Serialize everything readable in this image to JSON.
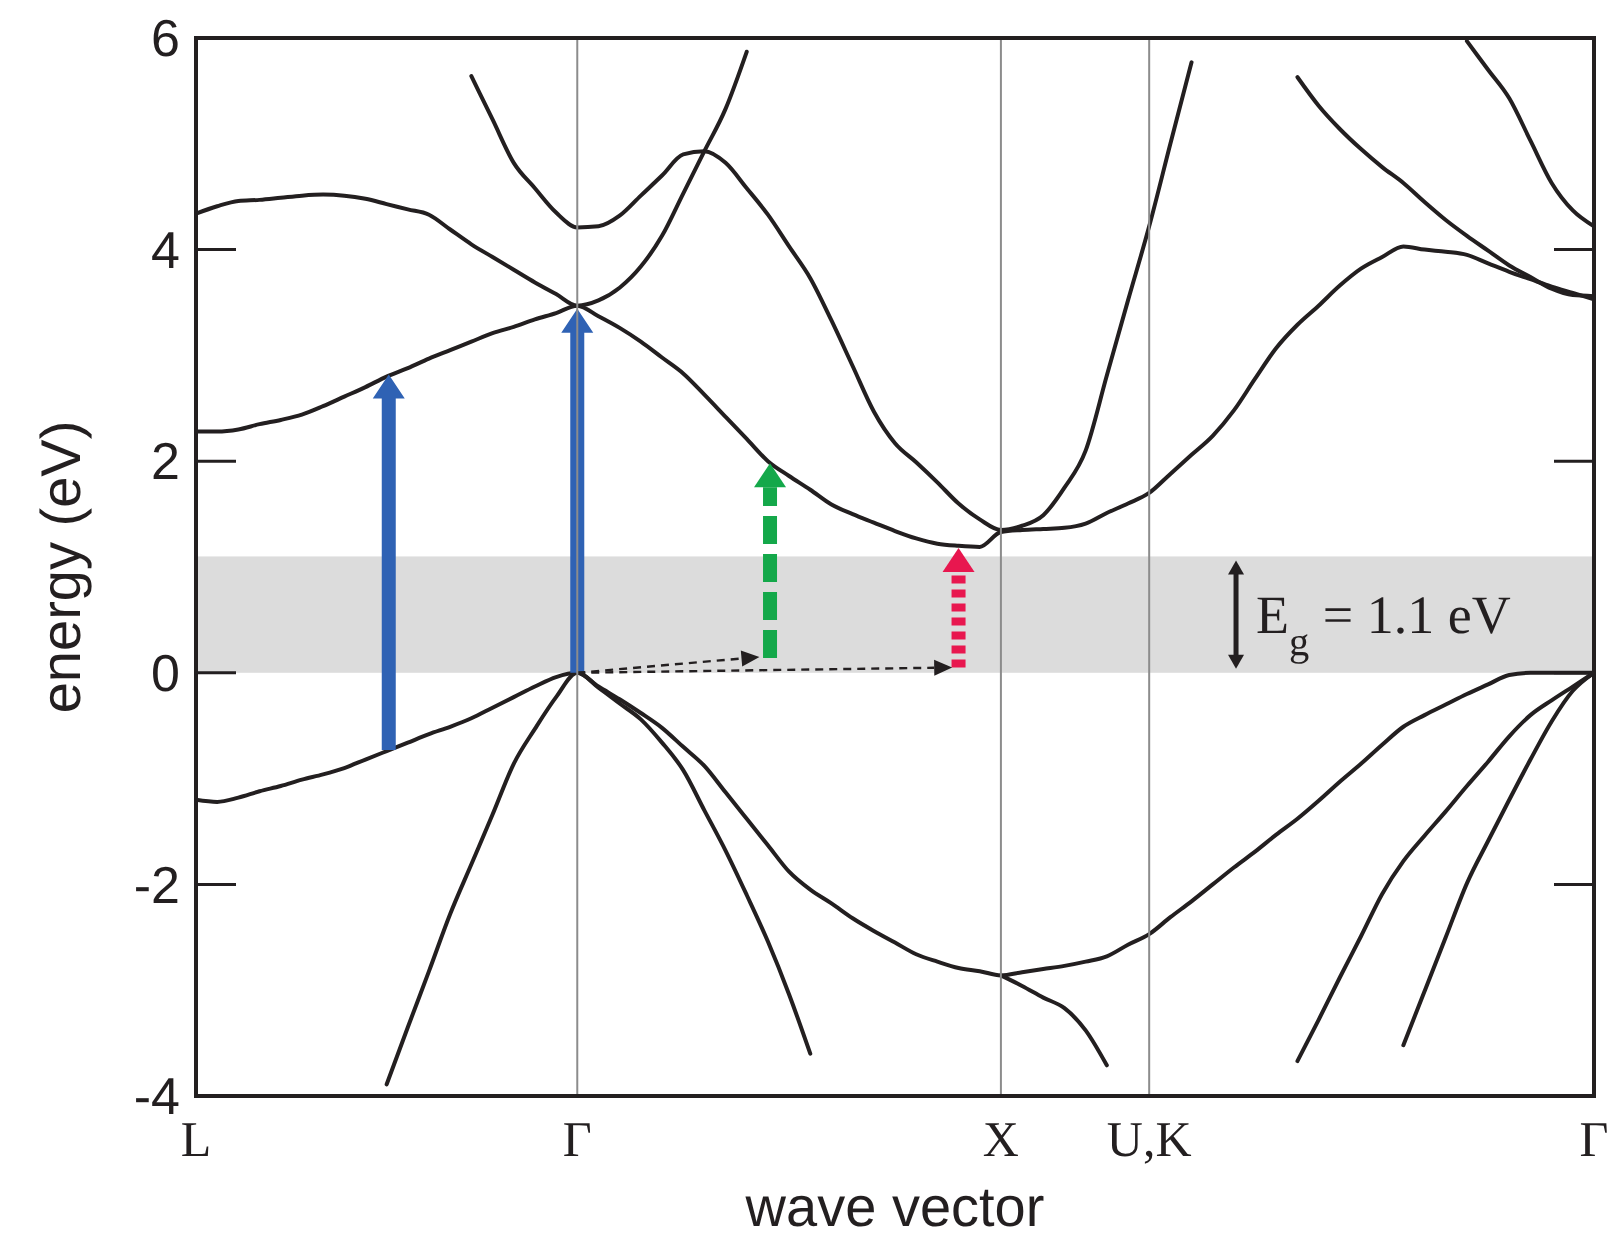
{
  "chart_data": {
    "type": "line",
    "xlabel": "wave vector",
    "ylabel": "energy (eV)",
    "ylim": [
      -4,
      6
    ],
    "categories": [
      "L",
      null,
      null,
      null,
      null,
      null,
      null,
      null,
      null,
      null,
      null,
      null,
      null,
      null,
      null,
      null,
      null,
      null,
      "Γ",
      null,
      null,
      null,
      null,
      null,
      null,
      null,
      null,
      null,
      null,
      null,
      null,
      null,
      null,
      null,
      null,
      null,
      null,
      null,
      "X",
      null,
      null,
      null,
      null,
      null,
      null,
      "U,K",
      null,
      null,
      null,
      null,
      null,
      null,
      null,
      null,
      null,
      null,
      null,
      null,
      null,
      null,
      null,
      null,
      null,
      null,
      null,
      null,
      "Γ"
    ],
    "yticks": [
      -4,
      -2,
      0,
      2,
      4,
      6
    ],
    "ref_lines": [
      {
        "axis": "x",
        "value": "Γ",
        "color": "#8c8c8c"
      },
      {
        "axis": "x",
        "value": "X",
        "color": "#8c8c8c"
      },
      {
        "axis": "x",
        "value": "U,K",
        "color": "#8c8c8c"
      }
    ],
    "bands": [
      {
        "axis": "y",
        "from": 0,
        "to": 1.1,
        "label": "E$_{g}$ = 1.1 eV",
        "color": "#dcdcdc"
      }
    ],
    "series": [
      {
        "color": "#231f20",
        "values": [
          -1.2,
          -1.22,
          -1.18,
          -1.12,
          -1.07,
          -1.01,
          -0.96,
          -0.9,
          -0.82,
          -0.74,
          -0.66,
          -0.58,
          -0.51,
          -0.43,
          -0.33,
          -0.23,
          -0.13,
          -0.04,
          0,
          -0.13,
          -0.25,
          -0.38,
          -0.52,
          -0.7,
          -0.88,
          -1.13,
          -1.38,
          -1.63,
          -1.88,
          -2.05,
          -2.18,
          -2.32,
          -2.44,
          -2.55,
          -2.66,
          -2.73,
          -2.79,
          -2.82,
          -2.86,
          -2.83,
          -2.8,
          -2.77,
          -2.73,
          -2.68,
          -2.57,
          -2.47,
          -2.31,
          -2.16,
          -2,
          -1.84,
          -1.69,
          -1.53,
          -1.38,
          -1.21,
          -1.03,
          -0.86,
          -0.68,
          -0.51,
          -0.4,
          -0.3,
          -0.2,
          -0.11,
          -0.02,
          0,
          0,
          0,
          0
        ]
      },
      {
        "color": "#231f20",
        "values": [
          null,
          null,
          null,
          null,
          null,
          null,
          null,
          null,
          null,
          -3.89,
          -3.35,
          -2.82,
          -2.28,
          -1.81,
          -1.34,
          -0.86,
          -0.53,
          -0.23,
          0,
          -0.14,
          -0.29,
          -0.44,
          -0.66,
          -0.92,
          -1.3,
          -1.68,
          -2.1,
          -2.54,
          -3.04,
          -3.6,
          null,
          null,
          null,
          null,
          null,
          null,
          null,
          null,
          null,
          null,
          null,
          null,
          null,
          null,
          null,
          null,
          null,
          null,
          null,
          null,
          null,
          null,
          null,
          null,
          null,
          null,
          null,
          null,
          null,
          null,
          null,
          null,
          null,
          null,
          null,
          null,
          null
        ]
      },
      {
        "color": "#231f20",
        "values": [
          null,
          null,
          null,
          null,
          null,
          null,
          null,
          null,
          null,
          null,
          null,
          null,
          null,
          null,
          null,
          null,
          null,
          null,
          null,
          null,
          null,
          null,
          null,
          null,
          null,
          null,
          null,
          null,
          null,
          null,
          null,
          null,
          null,
          null,
          null,
          null,
          null,
          null,
          -2.86,
          -2.96,
          -3.07,
          -3.17,
          -3.38,
          -3.71,
          null,
          null,
          null,
          null,
          null,
          null,
          null,
          null,
          null,
          null,
          null,
          null,
          null,
          null,
          null,
          null,
          null,
          null,
          null,
          null,
          null,
          null,
          null
        ]
      },
      {
        "color": "#231f20",
        "values": [
          null,
          null,
          null,
          null,
          null,
          null,
          null,
          null,
          null,
          null,
          null,
          null,
          null,
          null,
          null,
          null,
          null,
          null,
          null,
          null,
          null,
          null,
          null,
          null,
          null,
          null,
          null,
          null,
          null,
          null,
          null,
          null,
          null,
          null,
          null,
          null,
          null,
          null,
          null,
          null,
          null,
          null,
          null,
          null,
          null,
          null,
          null,
          null,
          null,
          null,
          null,
          null,
          -3.67,
          -3.28,
          -2.88,
          -2.49,
          -2.09,
          -1.78,
          -1.54,
          -1.31,
          -1.07,
          -0.84,
          -0.6,
          -0.4,
          -0.26,
          -0.13,
          0
        ]
      },
      {
        "color": "#231f20",
        "values": [
          null,
          null,
          null,
          null,
          null,
          null,
          null,
          null,
          null,
          null,
          null,
          null,
          null,
          null,
          null,
          null,
          null,
          null,
          null,
          null,
          null,
          null,
          null,
          null,
          null,
          null,
          null,
          null,
          null,
          null,
          null,
          null,
          null,
          null,
          null,
          null,
          null,
          null,
          null,
          null,
          null,
          null,
          null,
          null,
          null,
          null,
          null,
          null,
          null,
          null,
          null,
          null,
          null,
          null,
          null,
          null,
          null,
          -3.52,
          -3.01,
          -2.5,
          -1.99,
          -1.59,
          -1.2,
          -0.82,
          -0.46,
          -0.17,
          0
        ]
      },
      {
        "color": "#231f20",
        "values": [
          2.28,
          2.28,
          2.3,
          2.35,
          2.39,
          2.44,
          2.52,
          2.61,
          2.7,
          2.8,
          2.88,
          2.97,
          3.05,
          3.13,
          3.21,
          3.27,
          3.34,
          3.4,
          3.47,
          3.37,
          3.26,
          3.13,
          2.98,
          2.83,
          2.63,
          2.42,
          2.21,
          2,
          1.86,
          1.73,
          1.59,
          1.5,
          1.42,
          1.34,
          1.27,
          1.22,
          1.2,
          1.19,
          1.33,
          1.35,
          1.36,
          1.37,
          1.41,
          1.51,
          1.6,
          1.7,
          1.88,
          2.06,
          2.24,
          2.48,
          2.78,
          3.07,
          3.29,
          3.47,
          3.66,
          3.82,
          3.93,
          4.03,
          4,
          3.98,
          3.95,
          3.87,
          3.79,
          3.72,
          3.65,
          3.59,
          3.53
        ]
      },
      {
        "color": "#231f20",
        "values": [
          4.34,
          4.41,
          4.46,
          4.47,
          4.49,
          4.51,
          4.52,
          4.51,
          4.48,
          4.43,
          4.38,
          4.33,
          4.19,
          4.05,
          3.93,
          3.81,
          3.69,
          3.58,
          3.47,
          3.52,
          3.64,
          3.84,
          4.13,
          4.53,
          4.93,
          5.33,
          5.87,
          null,
          null,
          null,
          null,
          null,
          null,
          null,
          null,
          null,
          null,
          null,
          null,
          null,
          null,
          null,
          null,
          null,
          null,
          null,
          null,
          null,
          null,
          null,
          null,
          null,
          null,
          null,
          null,
          null,
          null,
          null,
          null,
          null,
          null,
          null,
          null,
          null,
          null,
          null,
          null
        ]
      },
      {
        "color": "#231f20",
        "values": [
          null,
          null,
          null,
          null,
          null,
          null,
          null,
          null,
          null,
          null,
          null,
          null,
          null,
          5.64,
          5.23,
          4.82,
          4.58,
          4.35,
          4.21,
          4.22,
          4.32,
          4.51,
          4.7,
          4.9,
          4.93,
          4.82,
          4.58,
          4.33,
          4.03,
          3.73,
          3.33,
          2.9,
          2.47,
          2.17,
          1.99,
          1.8,
          1.6,
          1.45,
          1.35,
          1.39,
          1.49,
          1.75,
          2.1,
          2.81,
          3.52,
          4.22,
          5,
          5.77,
          null,
          null,
          null,
          null,
          null,
          null,
          null,
          null,
          null,
          null,
          null,
          null,
          null,
          null,
          null,
          null,
          null,
          null,
          null
        ]
      },
      {
        "color": "#231f20",
        "values": [
          null,
          null,
          null,
          null,
          null,
          null,
          null,
          null,
          null,
          null,
          null,
          null,
          null,
          null,
          null,
          null,
          null,
          null,
          null,
          null,
          null,
          null,
          null,
          null,
          null,
          null,
          null,
          null,
          null,
          null,
          null,
          null,
          null,
          null,
          null,
          null,
          null,
          null,
          null,
          null,
          null,
          null,
          null,
          null,
          null,
          null,
          null,
          null,
          null,
          null,
          null,
          null,
          5.63,
          5.36,
          5.14,
          4.95,
          4.78,
          4.63,
          4.45,
          4.28,
          4.13,
          3.99,
          3.85,
          3.74,
          3.63,
          3.57,
          3.56
        ]
      },
      {
        "color": "#231f20",
        "values": [
          null,
          null,
          null,
          null,
          null,
          null,
          null,
          null,
          null,
          null,
          null,
          null,
          null,
          null,
          null,
          null,
          null,
          null,
          null,
          null,
          null,
          null,
          null,
          null,
          null,
          null,
          null,
          null,
          null,
          null,
          null,
          null,
          null,
          null,
          null,
          null,
          null,
          null,
          null,
          null,
          null,
          null,
          null,
          null,
          null,
          null,
          null,
          null,
          null,
          null,
          null,
          null,
          null,
          null,
          null,
          null,
          null,
          null,
          null,
          null,
          5.97,
          5.7,
          5.43,
          5.03,
          4.63,
          4.37,
          4.22
        ]
      }
    ]
  }
}
